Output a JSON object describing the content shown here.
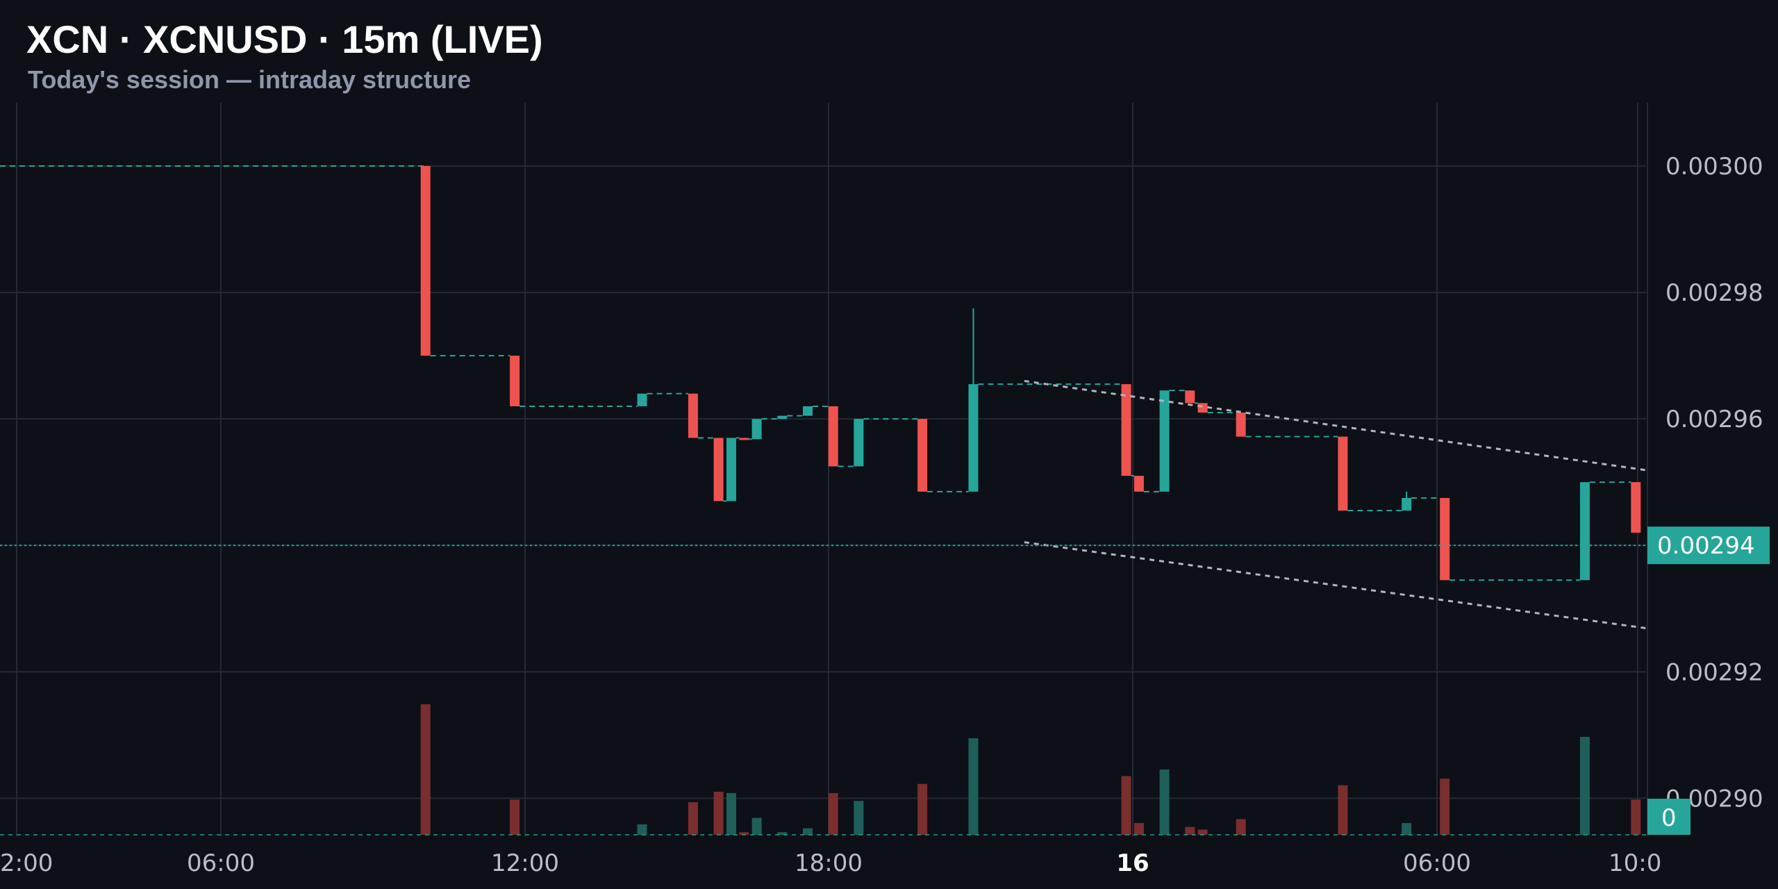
{
  "header": {
    "title": "XCN · XCNUSD · 15m (LIVE)",
    "subtitle": "Today's session — intraday structure"
  },
  "chart_data": {
    "type": "candlestick",
    "symbol": "XCNUSD",
    "timeframe": "15m",
    "x_tick_labels": [
      "2:00",
      "06:00",
      "12:00",
      "18:00",
      "16",
      "06:00",
      "10:0"
    ],
    "y_tick_labels": [
      "0.00300",
      "0.00298",
      "0.00296",
      "0.00294",
      "0.00292",
      "0.00290"
    ],
    "ylim": [
      0.002894,
      0.00301
    ],
    "xlim_hours": [
      -8.1,
      24.2
    ],
    "last_price": 0.00294,
    "last_price_label": "0.00294",
    "volume_badge_label": "0",
    "grid": true,
    "colors": {
      "up": "#26a69a",
      "down": "#ef5350",
      "background": "#0d1017",
      "grid": "#232a35",
      "trend": "#b0b5bf"
    },
    "candles": [
      {
        "t": 0.25,
        "o": 0.003,
        "h": 0.003,
        "l": 0.00297,
        "c": 0.00297,
        "v": 1.0
      },
      {
        "t": 2.0,
        "o": 0.00297,
        "h": 0.00297,
        "l": 0.002962,
        "c": 0.002962,
        "v": 0.27
      },
      {
        "t": 4.5,
        "o": 0.002962,
        "h": 0.002964,
        "l": 0.002962,
        "c": 0.002964,
        "v": 0.08
      },
      {
        "t": 5.5,
        "o": 0.002964,
        "h": 0.002964,
        "l": 0.002957,
        "c": 0.002957,
        "v": 0.25
      },
      {
        "t": 6.0,
        "o": 0.002957,
        "h": 0.002957,
        "l": 0.002947,
        "c": 0.002947,
        "v": 0.33
      },
      {
        "t": 6.25,
        "o": 0.002947,
        "h": 0.002957,
        "l": 0.002947,
        "c": 0.002957,
        "v": 0.32
      },
      {
        "t": 6.5,
        "o": 0.002957,
        "h": 0.002957,
        "l": 0.0029568,
        "c": 0.0029568,
        "v": 0.02
      },
      {
        "t": 6.75,
        "o": 0.0029568,
        "h": 0.00296,
        "l": 0.0029568,
        "c": 0.00296,
        "v": 0.13
      },
      {
        "t": 7.25,
        "o": 0.00296,
        "h": 0.0029605,
        "l": 0.00296,
        "c": 0.0029605,
        "v": 0.02
      },
      {
        "t": 7.75,
        "o": 0.0029605,
        "h": 0.002962,
        "l": 0.0029605,
        "c": 0.002962,
        "v": 0.05
      },
      {
        "t": 8.25,
        "o": 0.002962,
        "h": 0.002962,
        "l": 0.0029525,
        "c": 0.0029525,
        "v": 0.32
      },
      {
        "t": 8.75,
        "o": 0.0029525,
        "h": 0.00296,
        "l": 0.0029525,
        "c": 0.00296,
        "v": 0.26
      },
      {
        "t": 10.0,
        "o": 0.00296,
        "h": 0.00296,
        "l": 0.0029485,
        "c": 0.0029485,
        "v": 0.39
      },
      {
        "t": 11.0,
        "o": 0.0029485,
        "h": 0.0029775,
        "l": 0.0029485,
        "c": 0.0029655,
        "v": 0.74
      },
      {
        "t": 14.0,
        "o": 0.0029655,
        "h": 0.0029655,
        "l": 0.002951,
        "c": 0.002951,
        "v": 0.45
      },
      {
        "t": 14.25,
        "o": 0.002951,
        "h": 0.002951,
        "l": 0.0029485,
        "c": 0.0029485,
        "v": 0.09
      },
      {
        "t": 14.75,
        "o": 0.0029485,
        "h": 0.0029645,
        "l": 0.0029485,
        "c": 0.0029645,
        "v": 0.5
      },
      {
        "t": 15.25,
        "o": 0.0029645,
        "h": 0.0029645,
        "l": 0.0029625,
        "c": 0.0029625,
        "v": 0.06
      },
      {
        "t": 15.5,
        "o": 0.0029625,
        "h": 0.0029625,
        "l": 0.002961,
        "c": 0.002961,
        "v": 0.04
      },
      {
        "t": 16.25,
        "o": 0.002961,
        "h": 0.002961,
        "l": 0.0029572,
        "c": 0.0029572,
        "v": 0.12
      },
      {
        "t": 18.25,
        "o": 0.0029572,
        "h": 0.0029572,
        "l": 0.0029455,
        "c": 0.0029455,
        "v": 0.38
      },
      {
        "t": 19.5,
        "o": 0.0029455,
        "h": 0.0029485,
        "l": 0.0029455,
        "c": 0.0029475,
        "v": 0.09
      },
      {
        "t": 20.25,
        "o": 0.0029475,
        "h": 0.0029475,
        "l": 0.0029345,
        "c": 0.0029345,
        "v": 0.43
      },
      {
        "t": 23.0,
        "o": 0.0029345,
        "h": 0.00295,
        "l": 0.0029345,
        "c": 0.00295,
        "v": 0.75
      },
      {
        "t": 24.0,
        "o": 0.00295,
        "h": 0.00295,
        "l": 0.002942,
        "c": 0.002942,
        "v": 0.27
      }
    ],
    "trendlines": [
      {
        "t1": 12.0,
        "p1": 0.002966,
        "t2": 24.2,
        "p2": 0.0029519
      },
      {
        "t1": 12.0,
        "p1": 0.0029405,
        "t2": 24.2,
        "p2": 0.0029269
      }
    ]
  }
}
